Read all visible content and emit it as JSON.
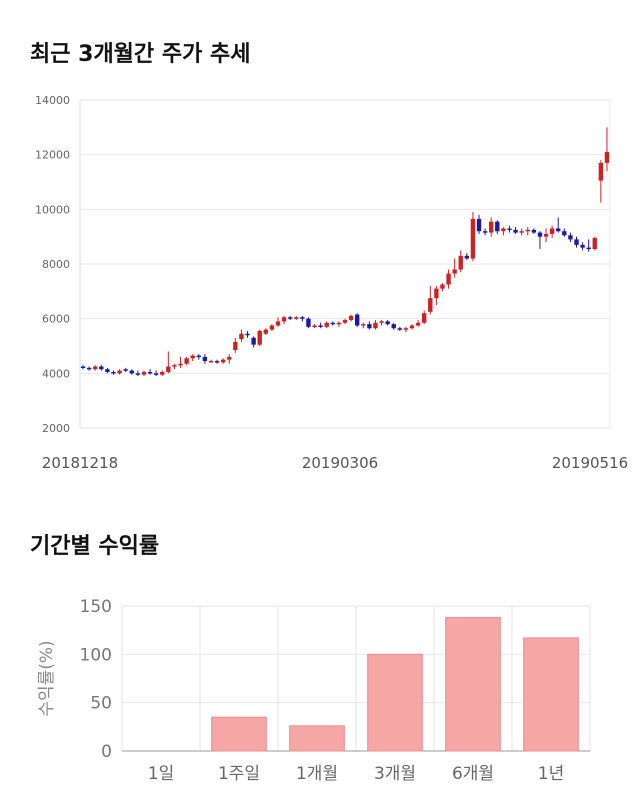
{
  "titles": {
    "price": "최근 3개월간 주가 추세",
    "returns": "기간별 수익률"
  },
  "colors": {
    "up": "#cc2222",
    "down": "#1a1aa6",
    "bar": "#f7a6a6",
    "bar_stroke": "#e88c8c",
    "grid": "#e6e6e6"
  },
  "chart_data": [
    {
      "type": "candlestick",
      "title": "최근 3개월간 주가 추세",
      "ylim": [
        2000,
        14000
      ],
      "yticks": [
        2000,
        4000,
        6000,
        8000,
        10000,
        12000,
        14000
      ],
      "x_labels": [
        "20181218",
        "20190306",
        "20190516"
      ],
      "grid": true,
      "candles": [
        [
          4250,
          4300,
          4150,
          4200
        ],
        [
          4200,
          4250,
          4100,
          4150
        ],
        [
          4150,
          4300,
          4100,
          4250
        ],
        [
          4250,
          4300,
          4100,
          4150
        ],
        [
          4150,
          4200,
          4000,
          4050
        ],
        [
          4050,
          4100,
          3950,
          4000
        ],
        [
          4000,
          4150,
          3950,
          4100
        ],
        [
          4150,
          4200,
          4050,
          4100
        ],
        [
          4100,
          4150,
          3950,
          4000
        ],
        [
          4000,
          4100,
          3900,
          3950
        ],
        [
          3950,
          4100,
          3900,
          4050
        ],
        [
          4050,
          4150,
          3950,
          4000
        ],
        [
          4000,
          4100,
          3900,
          3950
        ],
        [
          3950,
          4100,
          3900,
          4050
        ],
        [
          4050,
          4800,
          4000,
          4250
        ],
        [
          4250,
          4350,
          4150,
          4300
        ],
        [
          4300,
          4600,
          4200,
          4350
        ],
        [
          4350,
          4600,
          4300,
          4550
        ],
        [
          4550,
          4700,
          4450,
          4650
        ],
        [
          4650,
          4700,
          4500,
          4600
        ],
        [
          4600,
          4700,
          4350,
          4450
        ],
        [
          4450,
          4500,
          4400,
          4450
        ],
        [
          4450,
          4500,
          4350,
          4400
        ],
        [
          4400,
          4550,
          4350,
          4500
        ],
        [
          4500,
          4700,
          4350,
          4600
        ],
        [
          4850,
          5300,
          4750,
          5150
        ],
        [
          5250,
          5600,
          5150,
          5450
        ],
        [
          5450,
          5550,
          5300,
          5400
        ],
        [
          5300,
          5350,
          4950,
          5050
        ],
        [
          5050,
          5600,
          5000,
          5550
        ],
        [
          5450,
          5650,
          5400,
          5600
        ],
        [
          5600,
          5800,
          5550,
          5750
        ],
        [
          5750,
          6050,
          5700,
          5900
        ],
        [
          5900,
          6100,
          5800,
          6050
        ],
        [
          6050,
          6100,
          5950,
          6000
        ],
        [
          6000,
          6100,
          5950,
          6050
        ],
        [
          6050,
          6100,
          5900,
          6000
        ],
        [
          6000,
          6050,
          5650,
          5700
        ],
        [
          5700,
          5800,
          5650,
          5750
        ],
        [
          5750,
          5850,
          5650,
          5700
        ],
        [
          5700,
          5900,
          5650,
          5850
        ],
        [
          5850,
          5900,
          5750,
          5800
        ],
        [
          5800,
          5900,
          5700,
          5850
        ],
        [
          5850,
          6000,
          5800,
          5950
        ],
        [
          5950,
          6150,
          5900,
          6100
        ],
        [
          6150,
          6200,
          5700,
          5750
        ],
        [
          5750,
          5850,
          5650,
          5800
        ],
        [
          5800,
          5900,
          5600,
          5650
        ],
        [
          5650,
          5950,
          5600,
          5850
        ],
        [
          5850,
          5950,
          5750,
          5900
        ],
        [
          5900,
          5950,
          5750,
          5800
        ],
        [
          5800,
          5850,
          5600,
          5650
        ],
        [
          5650,
          5700,
          5550,
          5600
        ],
        [
          5600,
          5700,
          5500,
          5650
        ],
        [
          5650,
          5800,
          5600,
          5750
        ],
        [
          5750,
          5950,
          5700,
          5850
        ],
        [
          5850,
          6300,
          5800,
          6200
        ],
        [
          6250,
          7200,
          6150,
          6750
        ],
        [
          6750,
          7200,
          6500,
          7100
        ],
        [
          7100,
          7300,
          7000,
          7250
        ],
        [
          7250,
          7800,
          7100,
          7650
        ],
        [
          7650,
          8200,
          7500,
          7800
        ],
        [
          7800,
          8500,
          7700,
          8300
        ],
        [
          8300,
          8400,
          8150,
          8200
        ],
        [
          8200,
          9900,
          8100,
          9650
        ],
        [
          9650,
          9800,
          9100,
          9200
        ],
        [
          9200,
          9300,
          9050,
          9150
        ],
        [
          9150,
          9700,
          9000,
          9550
        ],
        [
          9550,
          9600,
          9100,
          9200
        ],
        [
          9200,
          9350,
          9050,
          9300
        ],
        [
          9300,
          9400,
          9150,
          9250
        ],
        [
          9250,
          9350,
          9100,
          9150
        ],
        [
          9150,
          9300,
          9050,
          9200
        ],
        [
          9200,
          9350,
          9050,
          9250
        ],
        [
          9250,
          9300,
          9100,
          9150
        ],
        [
          9150,
          9200,
          8550,
          9000
        ],
        [
          9000,
          9300,
          8800,
          9100
        ],
        [
          9100,
          9400,
          8950,
          9300
        ],
        [
          9300,
          9700,
          9150,
          9200
        ],
        [
          9200,
          9300,
          9000,
          9050
        ],
        [
          9050,
          9150,
          8800,
          8900
        ],
        [
          8900,
          9000,
          8600,
          8700
        ],
        [
          8700,
          8800,
          8500,
          8600
        ],
        [
          8600,
          8900,
          8450,
          8550
        ],
        [
          8550,
          9000,
          8500,
          8950
        ],
        [
          11050,
          11800,
          10250,
          11700
        ],
        [
          11700,
          13000,
          11400,
          12100
        ]
      ]
    },
    {
      "type": "bar",
      "categories": [
        "1일",
        "1주일",
        "1개월",
        "3개월",
        "6개월",
        "1년"
      ],
      "values": [
        0,
        35,
        26,
        100,
        138,
        117
      ],
      "ylabel": "수익률(%)",
      "ylim": [
        0,
        150
      ],
      "yticks": [
        0,
        50,
        100,
        150
      ],
      "grid": true
    }
  ]
}
